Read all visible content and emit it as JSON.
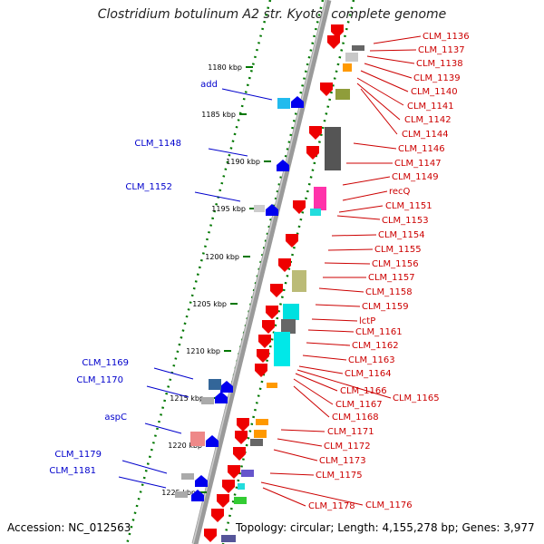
{
  "header": {
    "title": "Clostridium botulinum A2 str. Kyoto, complete genome"
  },
  "footer": {
    "accession": "Accession: NC_012563",
    "topology": "Topology: circular; Length: 4,155,278 bp; Genes: 3,977"
  },
  "colors": {
    "left_label": "#0000cc",
    "right_label": "#cc0000",
    "tick": "#007700",
    "backbone": "#888888"
  },
  "scale_labels": [
    "1180 kbp",
    "1185 kbp",
    "1190 kbp",
    "1195 kbp",
    "1200 kbp",
    "1205 kbp",
    "1210 kbp",
    "1215 kbp",
    "1220 kbp",
    "1225 kbp"
  ],
  "left_genes": [
    "add",
    "CLM_1148",
    "CLM_1152",
    "CLM_1169",
    "CLM_1170",
    "aspC",
    "CLM_1179",
    "CLM_1181"
  ],
  "right_genes": [
    "CLM_1136",
    "CLM_1137",
    "CLM_1138",
    "CLM_1139",
    "CLM_1140",
    "CLM_1141",
    "CLM_1142",
    "CLM_1144",
    "CLM_1146",
    "CLM_1147",
    "CLM_1149",
    "recQ",
    "CLM_1151",
    "CLM_1153",
    "CLM_1154",
    "CLM_1155",
    "CLM_1156",
    "CLM_1157",
    "CLM_1158",
    "CLM_1159",
    "lctP",
    "CLM_1161",
    "CLM_1162",
    "CLM_1163",
    "CLM_1164",
    "CLM_1166",
    "CLM_1165",
    "CLM_1167",
    "CLM_1168",
    "CLM_1171",
    "CLM_1172",
    "CLM_1173",
    "CLM_1175",
    "CLM_1176",
    "CLM_1178"
  ]
}
